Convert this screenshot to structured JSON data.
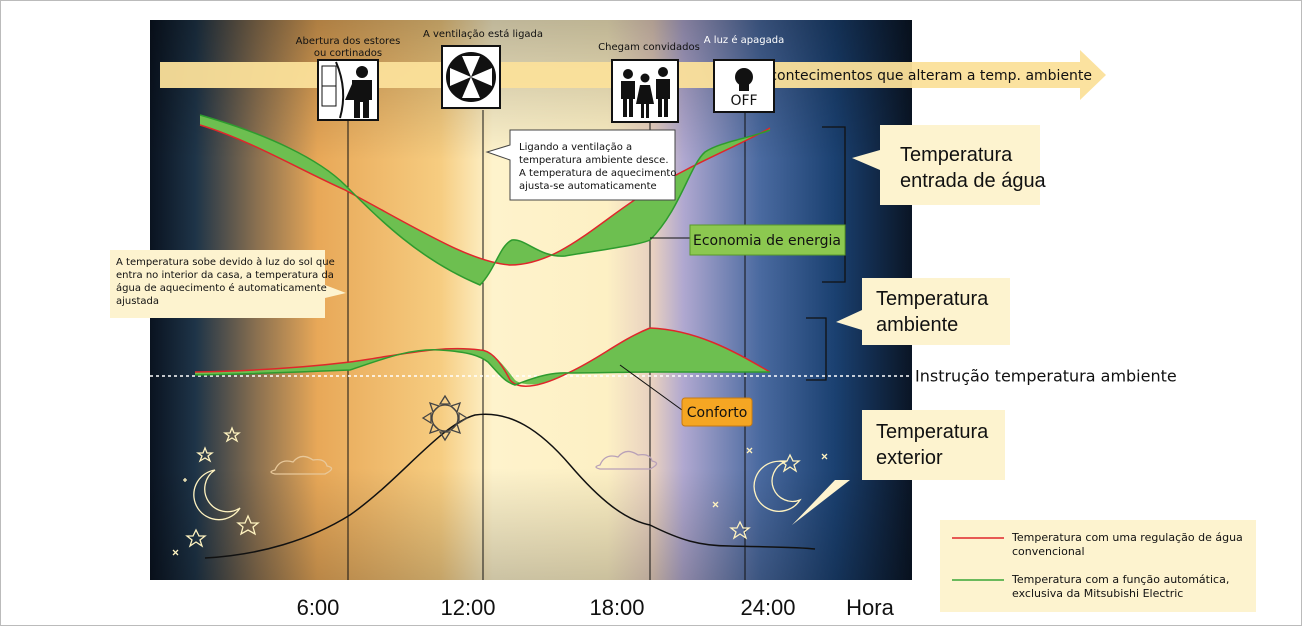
{
  "events_arrow": {
    "label": "Acontecimentos que alteram a temp. ambiente"
  },
  "events": [
    {
      "label": [
        "Abertura dos estores",
        "ou cortinados"
      ]
    },
    {
      "label": [
        "A ventilação está ligada"
      ]
    },
    {
      "label": [
        "Chegam convidados"
      ]
    },
    {
      "label": [
        "A luz é apagada"
      ],
      "icon_text": "OFF"
    }
  ],
  "callouts": {
    "ventilation": [
      "Ligando a ventilação a",
      "temperatura ambiente desce.",
      "A temperatura de aquecimento",
      "ajusta-se automaticamente"
    ],
    "sun": [
      "A temperatura sobe devido à luz do sol que",
      "entra no interior da casa, a temperatura da",
      "água de aquecimento é automaticamente",
      "ajustada"
    ],
    "water": [
      "Temperatura",
      "entrada de água"
    ],
    "ambient": [
      "Temperatura",
      "ambiente"
    ],
    "exterior": [
      "Temperatura",
      "exterior"
    ],
    "setpoint": "Instrução temperatura ambiente",
    "saving": "Economia de energia",
    "comfort": "Conforto"
  },
  "x_axis": {
    "labels": [
      "6:00",
      "12:00",
      "18:00",
      "24:00"
    ],
    "unit": "Hora"
  },
  "legend": [
    {
      "color": "#e0262b",
      "label": [
        "Temperatura com uma regulação de água",
        "convencional"
      ]
    },
    {
      "color": "#3aa636",
      "label": [
        "Temperatura com a função automática,",
        "exclusiva da Mitsubishi Electric"
      ]
    }
  ]
}
